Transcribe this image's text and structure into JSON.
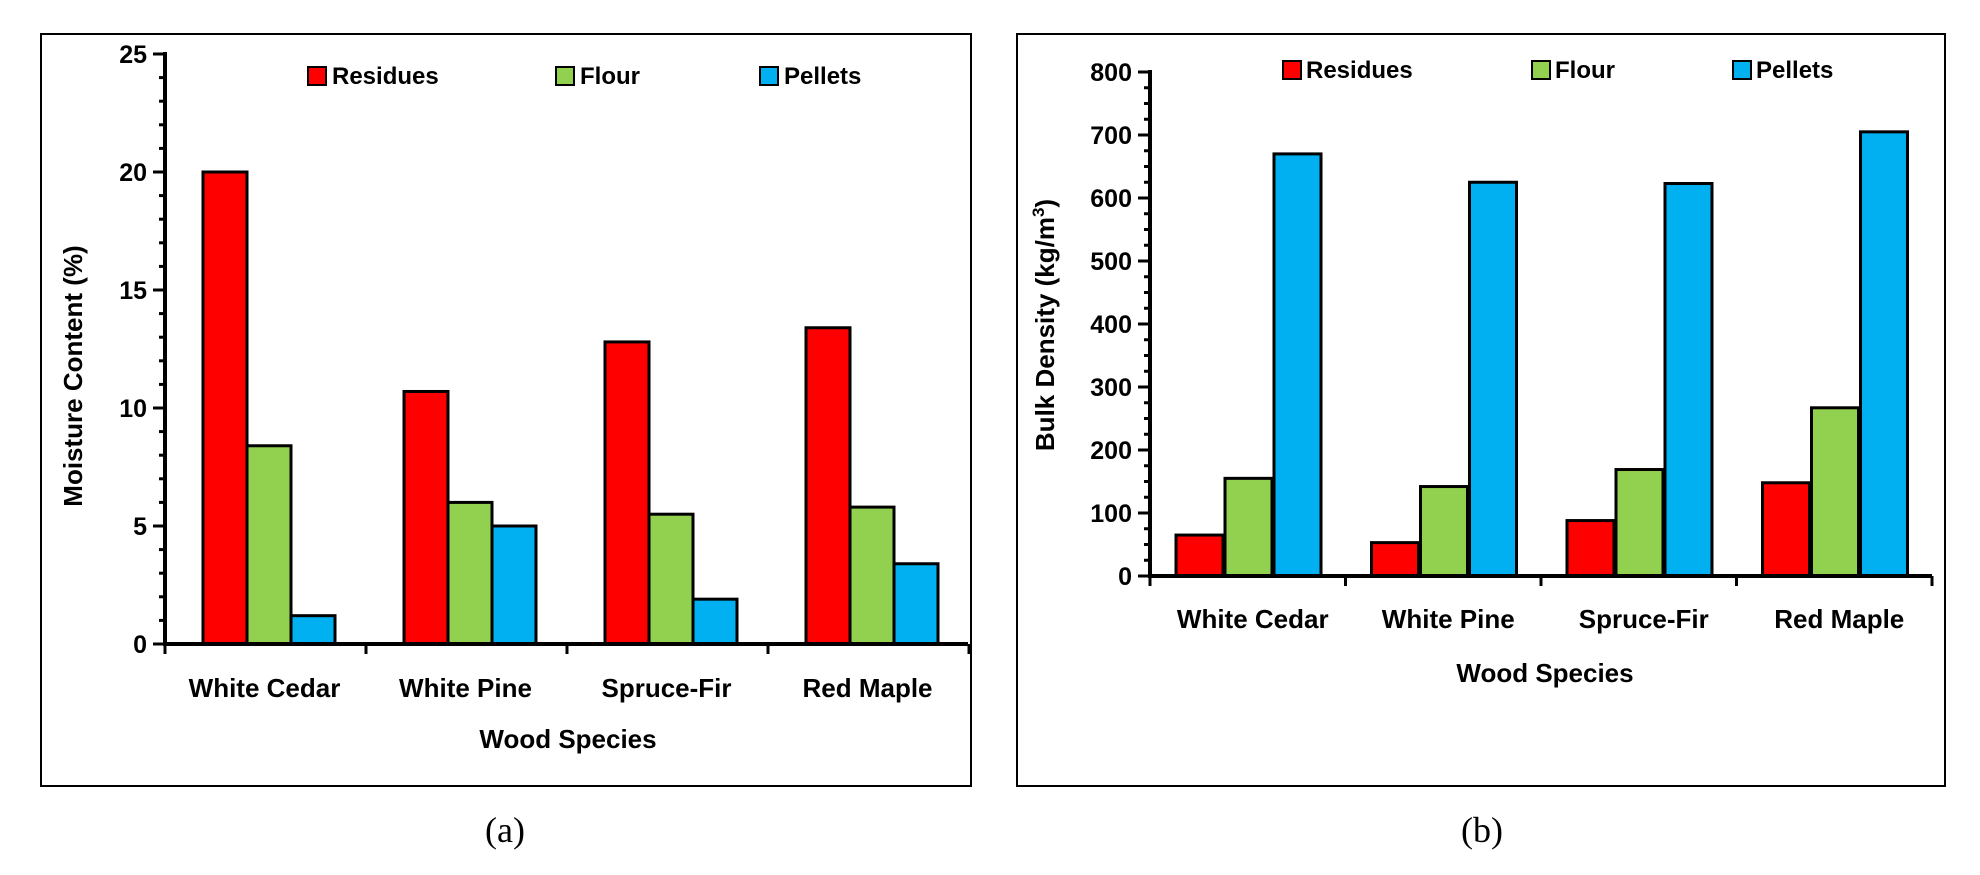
{
  "colors": {
    "Residues": "#ff0000",
    "Flour": "#92d050",
    "Pellets": "#00b0f0"
  },
  "chart_data": [
    {
      "type": "bar",
      "caption": "(a)",
      "categories": [
        "White Cedar",
        "White Pine",
        "Spruce-Fir",
        "Red Maple"
      ],
      "series": [
        {
          "name": "Residues",
          "values": [
            20.0,
            10.7,
            12.8,
            13.4
          ]
        },
        {
          "name": "Flour",
          "values": [
            8.4,
            6.0,
            5.5,
            5.8
          ]
        },
        {
          "name": "Pellets",
          "values": [
            1.2,
            5.0,
            1.9,
            3.4
          ]
        }
      ],
      "xlabel": "Wood Species",
      "ylabel": "Moisture Content (%)",
      "ylim": [
        0,
        25
      ],
      "yticks": [
        0,
        5,
        10,
        15,
        20,
        25
      ],
      "grid": false,
      "legend": "top"
    },
    {
      "type": "bar",
      "caption": "(b)",
      "categories": [
        "White Cedar",
        "White Pine",
        "Spruce-Fir",
        "Red Maple"
      ],
      "series": [
        {
          "name": "Residues",
          "values": [
            65,
            53,
            88,
            148
          ]
        },
        {
          "name": "Flour",
          "values": [
            155,
            142,
            169,
            267
          ]
        },
        {
          "name": "Pellets",
          "values": [
            670,
            625,
            623,
            705
          ]
        }
      ],
      "xlabel": "Wood Species",
      "ylabel": "Bulk Density (kg/m",
      "ylabel_sup": "3",
      "ylabel_end": ")",
      "ylim": [
        0,
        800
      ],
      "yticks": [
        0,
        100,
        200,
        300,
        400,
        500,
        600,
        700,
        800
      ],
      "grid": false,
      "legend": "top"
    }
  ]
}
